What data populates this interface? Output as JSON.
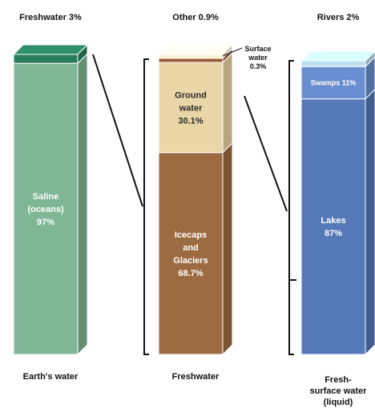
{
  "chart_data": {
    "type": "bar",
    "title": "",
    "columns": [
      {
        "top_label": "Freshwater 3%",
        "bottom_label": [
          "Earth's water"
        ],
        "segments": [
          {
            "name": "Freshwater",
            "label": [],
            "value": 3,
            "color": "#2a7d5e"
          },
          {
            "name": "Saline (oceans)",
            "label": [
              "Saline",
              "(oceans)",
              "97%"
            ],
            "value": 97,
            "color": "#7fb796"
          }
        ]
      },
      {
        "top_label": "Other 0.9%",
        "bottom_label": [
          "Freshwater"
        ],
        "side_label": [
          "Surface",
          "water",
          "0.3%"
        ],
        "segments": [
          {
            "name": "Other",
            "label": [],
            "value": 0.9,
            "color": "#fdf4d6"
          },
          {
            "name": "Surface water",
            "label": [],
            "value": 0.3,
            "color": "#9a5b35"
          },
          {
            "name": "Ground water",
            "label": [
              "Ground",
              "water",
              "30.1%"
            ],
            "value": 30.1,
            "color": "#ead6a6"
          },
          {
            "name": "Icecaps and Glaciers",
            "label": [
              "Icecaps",
              "and",
              "Glaciers",
              "68.7%"
            ],
            "value": 68.7,
            "color": "#9c6b42"
          }
        ]
      },
      {
        "top_label": "Rivers 2%",
        "bottom_label": [
          "Fresh-",
          "surface water",
          "(liquid)"
        ],
        "segments": [
          {
            "name": "Rivers",
            "label": [],
            "value": 2,
            "color": "#bcdff0"
          },
          {
            "name": "Swamps",
            "label": [
              "Swamps 11%"
            ],
            "value": 11,
            "color": "#6a8fd0"
          },
          {
            "name": "Lakes",
            "label": [
              "Lakes",
              "87%"
            ],
            "value": 87,
            "color": "#5478b8"
          }
        ]
      }
    ],
    "legend": "none",
    "grid": false
  }
}
